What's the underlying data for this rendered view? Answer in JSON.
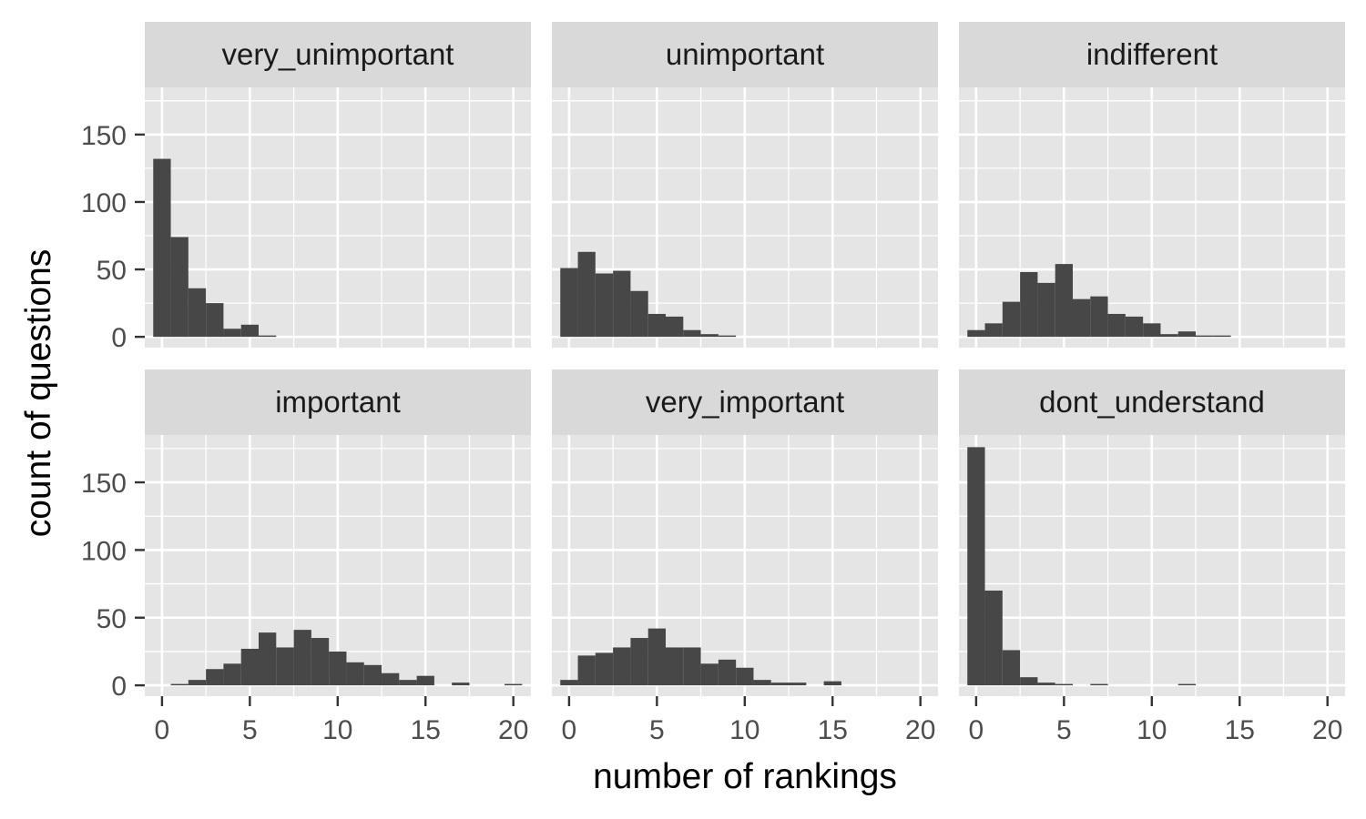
{
  "chart_data": {
    "type": "bar",
    "layout": "facet-grid 2x3 histogram",
    "xlabel": "number of rankings",
    "ylabel": "count of questions",
    "xlim": [
      -0.98,
      21.0
    ],
    "ylim": [
      -8,
      185
    ],
    "x_ticks": [
      0,
      5,
      10,
      15,
      20
    ],
    "y_ticks": [
      0,
      50,
      100,
      150
    ],
    "grid": true,
    "bin_width": 1,
    "bin_centers": [
      0,
      1,
      2,
      3,
      4,
      5,
      6,
      7,
      8,
      9,
      10,
      11,
      12,
      13,
      14,
      15,
      16,
      17,
      18,
      19,
      20
    ],
    "colors": {
      "bar": "#474747",
      "panel": "#e5e5e5",
      "strip": "#d9d9d9",
      "grid": "#ffffff"
    },
    "facets": [
      {
        "name": "very_unimportant",
        "values": [
          132,
          74,
          36,
          25,
          6,
          9,
          1,
          0,
          0,
          0,
          0,
          0,
          0,
          0,
          0,
          0,
          0,
          0,
          0,
          0,
          0
        ]
      },
      {
        "name": "unimportant",
        "values": [
          51,
          63,
          47,
          49,
          34,
          17,
          15,
          5,
          2,
          1,
          0,
          0,
          0,
          0,
          0,
          0,
          0,
          0,
          0,
          0,
          0
        ]
      },
      {
        "name": "indifferent",
        "values": [
          5,
          10,
          26,
          48,
          40,
          54,
          28,
          30,
          17,
          15,
          10,
          2,
          4,
          1,
          1,
          0,
          0,
          0,
          0,
          0,
          0
        ]
      },
      {
        "name": "important",
        "values": [
          0,
          1,
          4,
          12,
          16,
          27,
          39,
          28,
          41,
          35,
          25,
          17,
          15,
          9,
          4,
          7,
          0,
          2,
          0,
          0,
          1
        ]
      },
      {
        "name": "very_important",
        "values": [
          4,
          22,
          24,
          28,
          35,
          42,
          28,
          28,
          16,
          19,
          13,
          4,
          2,
          2,
          0,
          3,
          0,
          0,
          0,
          0,
          0
        ]
      },
      {
        "name": "dont_understand",
        "values": [
          176,
          70,
          26,
          6,
          2,
          1,
          0,
          1,
          0,
          0,
          0,
          0,
          1,
          0,
          0,
          0,
          0,
          0,
          0,
          0,
          0
        ]
      }
    ]
  }
}
